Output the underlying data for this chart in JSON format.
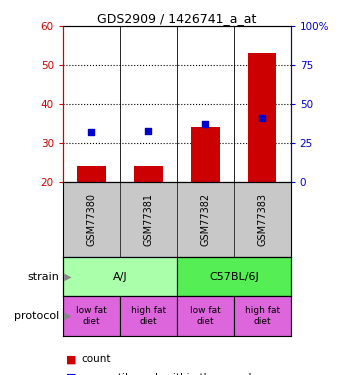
{
  "title": "GDS2909 / 1426741_a_at",
  "samples": [
    "GSM77380",
    "GSM77381",
    "GSM77382",
    "GSM77383"
  ],
  "counts": [
    24,
    24,
    34,
    53
  ],
  "percentiles": [
    32,
    33,
    37,
    41
  ],
  "ylim_left": [
    20,
    60
  ],
  "ylim_right": [
    0,
    100
  ],
  "yticks_left": [
    20,
    30,
    40,
    50,
    60
  ],
  "yticks_right": [
    0,
    25,
    50,
    75,
    100
  ],
  "bar_color": "#cc0000",
  "dot_color": "#0000cc",
  "bar_bottom": 20,
  "strain_labels": [
    "A/J",
    "C57BL/6J"
  ],
  "strain_color_aj": "#aaffaa",
  "strain_color_c57": "#55ee55",
  "protocol_labels": [
    "low fat\ndiet",
    "high fat\ndiet",
    "low fat\ndiet",
    "high fat\ndiet"
  ],
  "protocol_color": "#dd66dd",
  "background_color": "#ffffff",
  "sample_box_color": "#c8c8c8",
  "left_tick_color": "#cc0000",
  "right_tick_color": "#0000cc"
}
